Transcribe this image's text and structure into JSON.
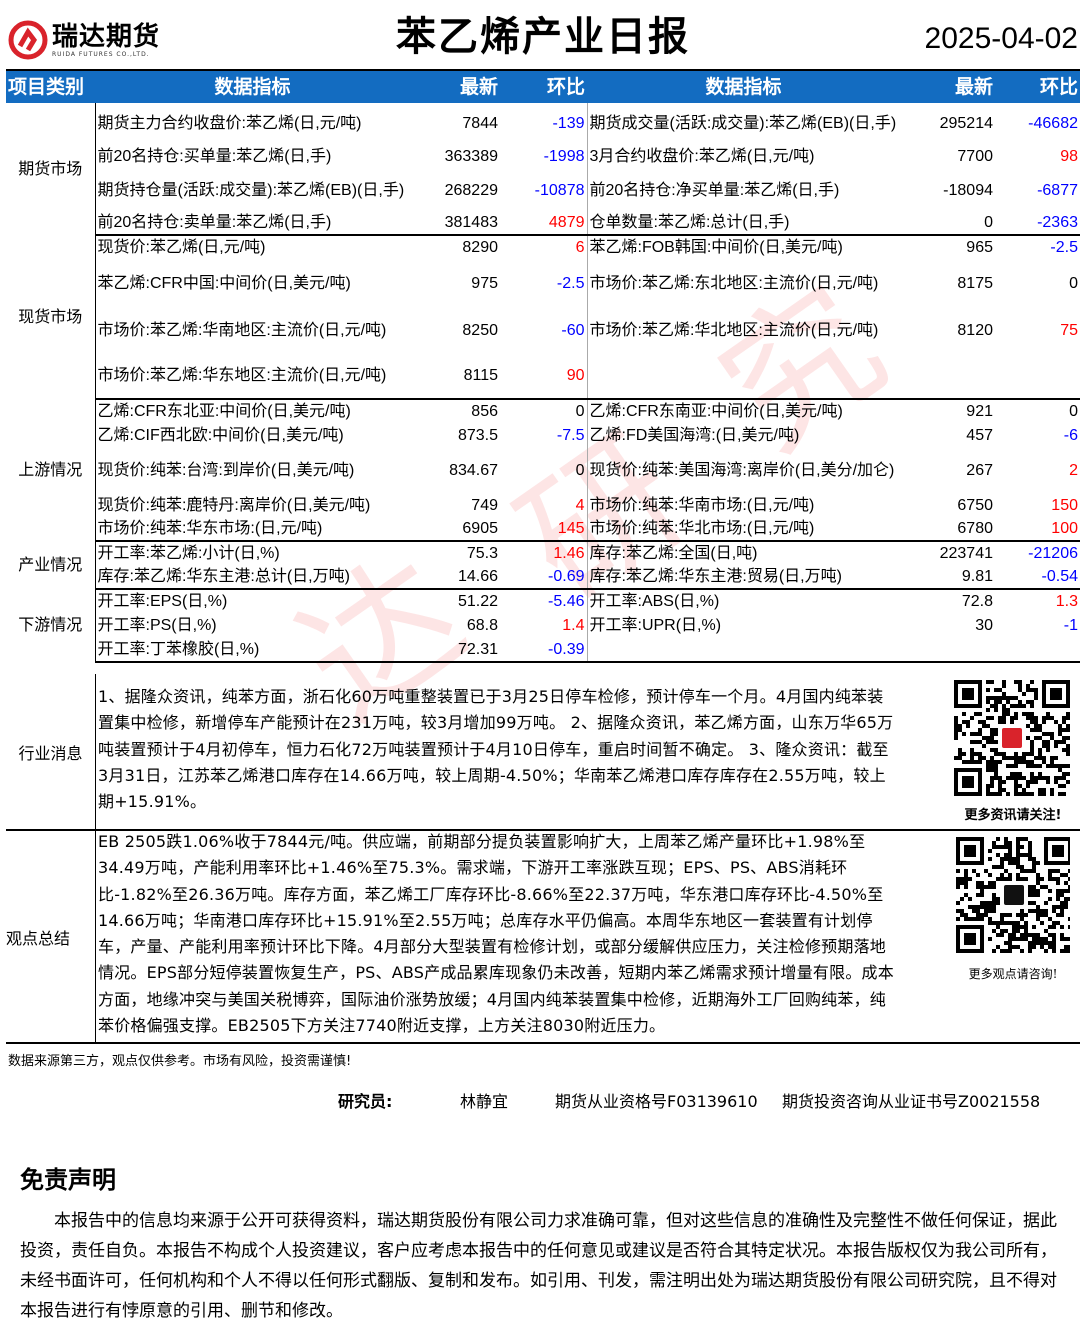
{
  "header": {
    "logo_cn": "瑞达期货",
    "logo_en": "RUIDA FUTURES CO.,LTD.",
    "title": "苯乙烯产业日报",
    "date": "2025-04-02"
  },
  "colors": {
    "header_bg": "#136cc1",
    "positive": "#ff0000",
    "negative": "#0000ff"
  },
  "table": {
    "columns": [
      "项目类别",
      "数据指标",
      "最新",
      "环比",
      "数据指标",
      "最新",
      "环比"
    ],
    "sections": [
      {
        "category": "期货市场",
        "rows": [
          {
            "l": [
              "期货主力合约收盘价:苯乙烯(日,元/吨)",
              "7844",
              "-139"
            ],
            "r": [
              "期货成交量(活跃:成交量):苯乙烯(EB)(日,手)",
              "295214",
              "-46682"
            ]
          },
          {
            "l": [
              "前20名持仓:买单量:苯乙烯(日,手)",
              "363389",
              "-1998"
            ],
            "r": [
              "3月合约收盘价:苯乙烯(日,元/吨)",
              "7700",
              "98"
            ]
          },
          {
            "l": [
              "期货持仓量(活跃:成交量):苯乙烯(EB)(日,手)",
              "268229",
              "-10878"
            ],
            "r": [
              "前20名持仓:净买单量:苯乙烯(日,手)",
              "-18094",
              "-6877"
            ]
          },
          {
            "l": [
              "前20名持仓:卖单量:苯乙烯(日,手)",
              "381483",
              "4879"
            ],
            "r": [
              "仓单数量:苯乙烯:总计(日,手)",
              "0",
              "-2363"
            ]
          }
        ]
      },
      {
        "category": "现货市场",
        "rows": [
          {
            "l": [
              "现货价:苯乙烯(日,元/吨)",
              "8290",
              "6"
            ],
            "r": [
              "苯乙烯:FOB韩国:中间价(日,美元/吨)",
              "965",
              "-2.5"
            ]
          },
          {
            "l": [
              "苯乙烯:CFR中国:中间价(日,美元/吨)",
              "975",
              "-2.5"
            ],
            "r": [
              "市场价:苯乙烯:东北地区:主流价(日,元/吨)",
              "8175",
              "0"
            ]
          },
          {
            "l": [
              "市场价:苯乙烯:华南地区:主流价(日,元/吨)",
              "8250",
              "-60"
            ],
            "r": [
              "市场价:苯乙烯:华北地区:主流价(日,元/吨)",
              "8120",
              "75"
            ]
          },
          {
            "l": [
              "市场价:苯乙烯:华东地区:主流价(日,元/吨)",
              "8115",
              "90"
            ],
            "r": [
              "",
              "",
              ""
            ]
          }
        ]
      },
      {
        "category": "上游情况",
        "rows": [
          {
            "l": [
              "乙烯:CFR东北亚:中间价(日,美元/吨)",
              "856",
              "0"
            ],
            "r": [
              "乙烯:CFR东南亚:中间价(日,美元/吨)",
              "921",
              "0"
            ]
          },
          {
            "l": [
              "乙烯:CIF西北欧:中间价(日,美元/吨)",
              "873.5",
              "-7.5"
            ],
            "r": [
              "乙烯:FD美国海湾:(日,美元/吨)",
              "457",
              "-6"
            ]
          },
          {
            "l": [
              "现货价:纯苯:台湾:到岸价(日,美元/吨)",
              "834.67",
              "0"
            ],
            "r": [
              "现货价:纯苯:美国海湾:离岸价(日,美分/加仑)",
              "267",
              "2"
            ]
          },
          {
            "l": [
              "现货价:纯苯:鹿特丹:离岸价(日,美元/吨)",
              "749",
              "4"
            ],
            "r": [
              "市场价:纯苯:华南市场:(日,元/吨)",
              "6750",
              "150"
            ]
          },
          {
            "l": [
              "市场价:纯苯:华东市场:(日,元/吨)",
              "6905",
              "145"
            ],
            "r": [
              "市场价:纯苯:华北市场:(日,元/吨)",
              "6780",
              "100"
            ]
          }
        ]
      },
      {
        "category": "产业情况",
        "rows": [
          {
            "l": [
              "开工率:苯乙烯:小计(日,%)",
              "75.3",
              "1.46"
            ],
            "r": [
              "库存:苯乙烯:全国(日,吨)",
              "223741",
              "-21206"
            ]
          },
          {
            "l": [
              "库存:苯乙烯:华东主港:总计(日,万吨)",
              "14.66",
              "-0.69"
            ],
            "r": [
              "库存:苯乙烯:华东主港:贸易(日,万吨)",
              "9.81",
              "-0.54"
            ]
          }
        ]
      },
      {
        "category": "下游情况",
        "rows": [
          {
            "l": [
              "开工率:EPS(日,%)",
              "51.22",
              "-5.46"
            ],
            "r": [
              "开工率:ABS(日,%)",
              "72.8",
              "1.3"
            ]
          },
          {
            "l": [
              "开工率:PS(日,%)",
              "68.8",
              "1.4"
            ],
            "r": [
              "开工率:UPR(日,%)",
              "30",
              "-1"
            ]
          },
          {
            "l": [
              "开工率:丁苯橡胶(日,%)",
              "72.31",
              "-0.39"
            ],
            "r": [
              "",
              "",
              ""
            ]
          }
        ]
      }
    ]
  },
  "news": {
    "label": "行业消息",
    "text": "1、据隆众资讯，纯苯方面，浙石化60万吨重整装置已于3月25日停车检修，预计停车一个月。4月国内纯苯装置集中检修，新增停车产能预计在231万吨，较3月增加99万吨。 2、据隆众资讯，苯乙烯方面，山东万华65万吨装置预计于4月初停车，恒力石化72万吨装置预计于4月10日停车，重启时间暂不确定。 3、隆众资讯：截至3月31日，江苏苯乙烯港口库存在14.66万吨，较上周期-4.50%；华南苯乙烯港口库存库存在2.55万吨，较上期+15.91%。",
    "qr_caption": "更多资讯请关注!"
  },
  "summary": {
    "label": "观点总结",
    "text": "EB 2505跌1.06%收于7844元/吨。供应端，前期部分提负装置影响扩大，上周苯乙烯产量环比+1.98%至34.49万吨，产能利用率环比+1.46%至75.3%。需求端，下游开工率涨跌互现；EPS、PS、ABS消耗环比-1.82%至26.36万吨。库存方面，苯乙烯工厂库存环比-8.66%至22.37万吨，华东港口库存环比-4.50%至14.66万吨；华南港口库存环比+15.91%至2.55万吨；总库存水平仍偏高。本周华东地区一套装置有计划停车，产量、产能利用率预计环比下降。4月部分大型装置有检修计划，或部分缓解供应压力，关注检修预期落地情况。EPS部分短停装置恢复生产，PS、ABS产成品累库现象仍未改善，短期内苯乙烯需求预计增量有限。成本方面，地缘冲突与美国关税博弈，国际油价涨势放缓；4月国内纯苯装置集中检修，近期海外工厂回购纯苯，纯苯价格偏强支撑。EB2505下方关注7740附近支撑，上方关注8030附近压力。",
    "qr_caption": "更多观点请咨询!"
  },
  "footer": {
    "source_note": "数据来源第三方，观点仅供参考。市场有风险，投资需谨慎!",
    "researcher_label": "研究员:",
    "researcher_name": "林静宜",
    "qualification": "期货从业资格号F03139610",
    "consult_cert": "期货投资咨询从业证书号Z0021558"
  },
  "disclaimer": {
    "title": "免责声明",
    "text": "本报告中的信息均来源于公开可获得资料，瑞达期货股份有限公司力求准确可靠，但对这些信息的准确性及完整性不做任何保证，据此投资，责任自负。本报告不构成个人投资建议，客户应考虑本报告中的任何意见或建议是否符合其特定状况。本报告版权仅为我公司所有，未经书面许可，任何机构和个人不得以任何形式翻版、复制和发布。如引用、刊发，需注明出处为瑞达期货股份有限公司研究院，且不得对本报告进行有悖原意的引用、删节和修改。"
  },
  "watermark": "瑞达研究"
}
